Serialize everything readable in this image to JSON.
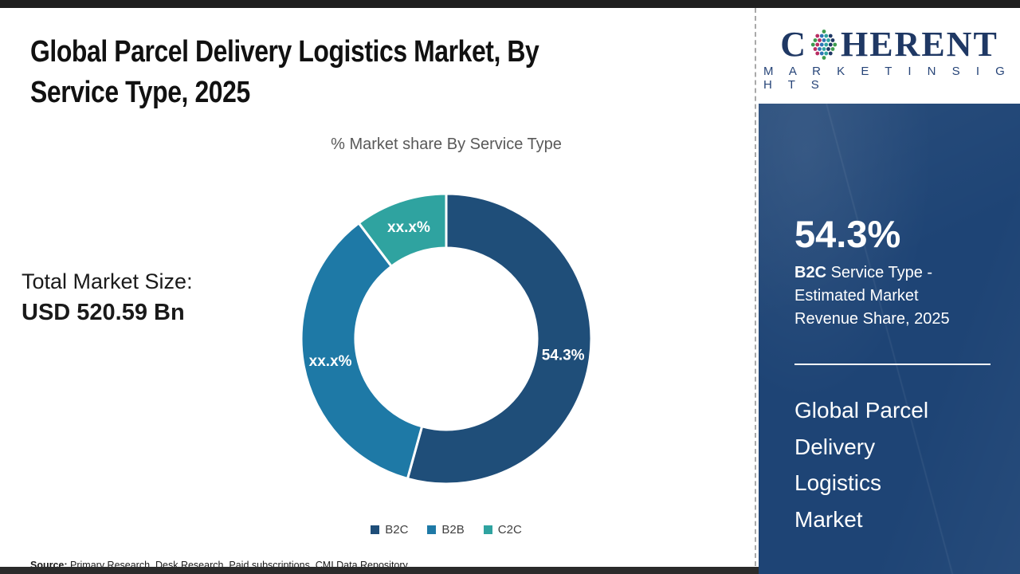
{
  "page": {
    "title_line1": "Global Parcel Delivery Logistics Market, By",
    "title_line2": "Service Type, 2025"
  },
  "chart_data": {
    "type": "pie",
    "subtype": "donut",
    "title": "% Market share By Service Type",
    "unit": "%",
    "legend_position": "bottom",
    "slices": [
      {
        "name": "B2C",
        "label": "54.3%",
        "value": 54.3,
        "masked": false,
        "color": "#1f4e79"
      },
      {
        "name": "B2B",
        "label": "xx.x%",
        "value": 35.4,
        "masked": true,
        "color": "#1e79a6"
      },
      {
        "name": "C2C",
        "label": "xx.x%",
        "value": 10.3,
        "masked": true,
        "color": "#2fa3a0"
      }
    ]
  },
  "stats": {
    "total_label": "Total Market Size:",
    "total_value": "USD 520.59 Bn"
  },
  "sidebar": {
    "logo": {
      "part1": "C",
      "part2": "HERENT",
      "tagline": "M A R K E T   I N S I G H T S",
      "text_color": "#1f3864",
      "globe_colors": [
        "#3d9b4e",
        "#b92d62",
        "#2e74b5",
        "#2fa3a0",
        "#1f3864"
      ]
    },
    "highlight": {
      "value": "54.3%",
      "bold": "B2C",
      "line1_rest": " Service Type -",
      "line2": "Estimated Market",
      "line3": "Revenue Share, 2025"
    },
    "panel_title_lines": [
      "Global Parcel",
      "Delivery",
      "Logistics",
      "Market"
    ],
    "panel_color": "#1e4475"
  },
  "footer": {
    "source_label": "Source:",
    "source_text": " Primary Research, Desk Research, Paid subscriptions, CMI Data Repository"
  }
}
